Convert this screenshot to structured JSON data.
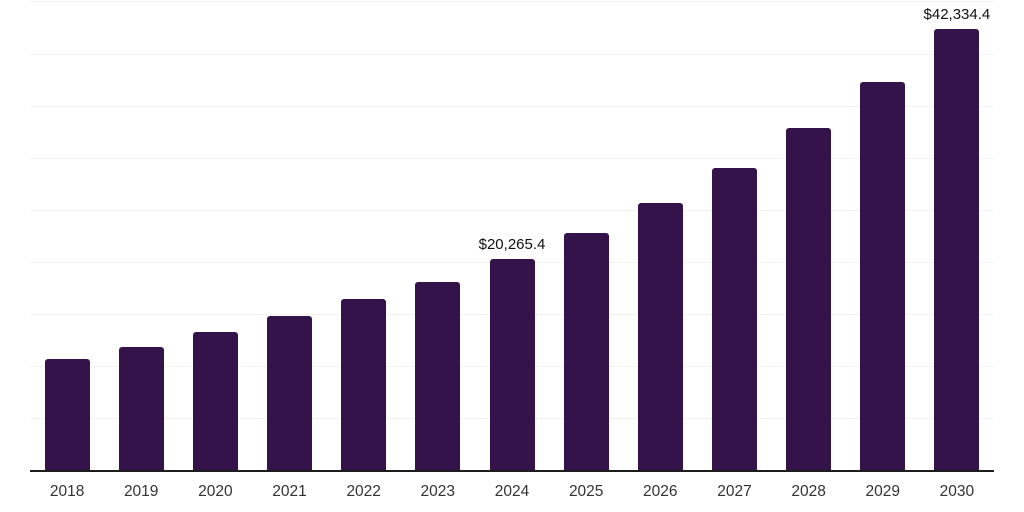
{
  "chart_data": {
    "type": "bar",
    "title": "",
    "xlabel": "",
    "ylabel": "",
    "categories": [
      "2018",
      "2019",
      "2020",
      "2021",
      "2022",
      "2023",
      "2024",
      "2025",
      "2026",
      "2027",
      "2028",
      "2029",
      "2030"
    ],
    "values": [
      10660,
      11810,
      13290,
      14790,
      16380,
      18060,
      20265.4,
      22790,
      25670,
      28980,
      32820,
      37300,
      42334.4
    ],
    "data_labels": [
      {
        "category": "2024",
        "text": "$20,265.4"
      },
      {
        "category": "2030",
        "text": "$42,334.4"
      }
    ],
    "ylim": [
      0,
      45000
    ],
    "gridline_step": 5000,
    "grid": true,
    "legend": false,
    "y_axis_labels_visible": false
  },
  "colors": {
    "bar": "#34124A",
    "axis_line": "#1D1D1D",
    "gridline": "#F2F2F2",
    "tick_label": "#333333",
    "data_label": "#111111",
    "background": "#FFFFFF"
  }
}
